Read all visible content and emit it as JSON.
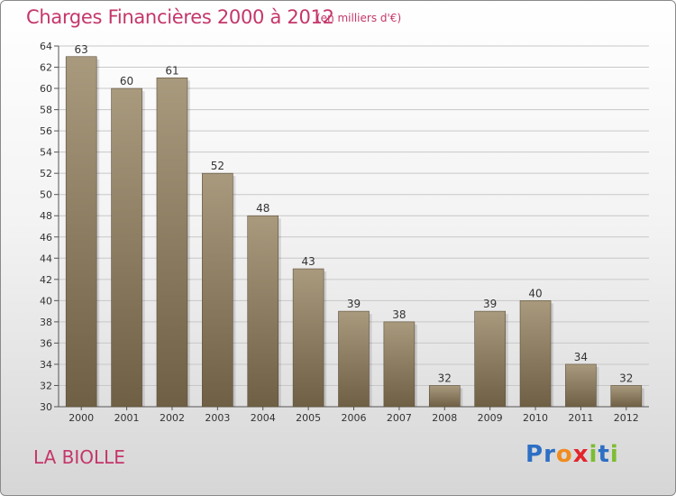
{
  "header": {
    "title": "Charges Financières 2000 à 2012",
    "subtitle": "(en milliers d'€)"
  },
  "footer": {
    "commune": "LA BIOLLE",
    "logo": {
      "text": "Proxiti",
      "letters": [
        {
          "ch": "P",
          "color": "#2d6fc4"
        },
        {
          "ch": "r",
          "color": "#2d6fc4"
        },
        {
          "ch": "o",
          "color": "#f08c1e"
        },
        {
          "ch": "x",
          "color": "#e3242b"
        },
        {
          "ch": "i",
          "color": "#7cbd32"
        },
        {
          "ch": "t",
          "color": "#2d6fc4"
        },
        {
          "ch": "i",
          "color": "#7cbd32"
        }
      ]
    }
  },
  "chart_data": {
    "type": "bar",
    "categories": [
      "2000",
      "2001",
      "2002",
      "2003",
      "2004",
      "2005",
      "2006",
      "2007",
      "2008",
      "2009",
      "2010",
      "2011",
      "2012"
    ],
    "values": [
      63,
      60,
      61,
      52,
      48,
      43,
      39,
      38,
      32,
      39,
      40,
      34,
      32
    ],
    "title": "Charges Financières 2000 à 2012",
    "ylim": [
      30,
      64
    ],
    "yticks": [
      30,
      32,
      34,
      36,
      38,
      40,
      42,
      44,
      46,
      48,
      50,
      52,
      54,
      56,
      58,
      60,
      62,
      64
    ],
    "grid": true,
    "colors": {
      "bar_top": "#a99a7e",
      "bar_bottom": "#6f5f45",
      "bar_edge": "#5c4e38"
    }
  }
}
